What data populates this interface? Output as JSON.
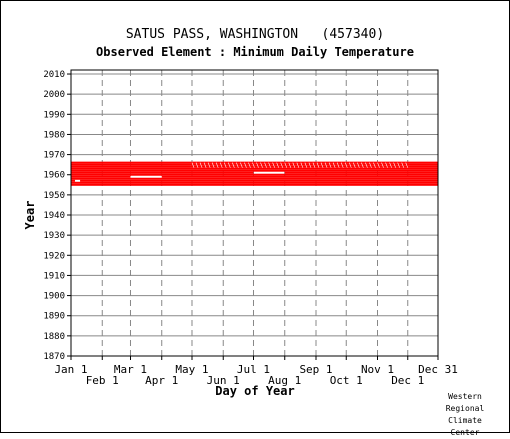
{
  "header": {
    "station": "SATUS PASS, WASHINGTON   (457340)",
    "element": "Observed Element : Minimum Daily Temperature"
  },
  "credit": [
    "Western",
    "Regional",
    "Climate",
    "Center"
  ],
  "colors": {
    "data": "#ff0000",
    "grid": "#888888",
    "axis": "#000000"
  },
  "chart_data": {
    "type": "scatter",
    "title": "SATUS PASS, WASHINGTON   (457340)",
    "subtitle": "Observed Element : Minimum Daily Temperature",
    "xlabel": "Day of Year",
    "ylabel": "Year",
    "xlim": [
      1,
      365
    ],
    "ylim": [
      1870,
      2012
    ],
    "x_ticks": [
      {
        "label": "Jan 1",
        "day": 1,
        "row": 1
      },
      {
        "label": "Feb 1",
        "day": 32,
        "row": 2
      },
      {
        "label": "Mar 1",
        "day": 60,
        "row": 1
      },
      {
        "label": "Apr 1",
        "day": 91,
        "row": 2
      },
      {
        "label": "May 1",
        "day": 121,
        "row": 1
      },
      {
        "label": "Jun 1",
        "day": 152,
        "row": 2
      },
      {
        "label": "Jul 1",
        "day": 182,
        "row": 1
      },
      {
        "label": "Aug 1",
        "day": 213,
        "row": 2
      },
      {
        "label": "Sep 1",
        "day": 244,
        "row": 1
      },
      {
        "label": "Oct 1",
        "day": 274,
        "row": 2
      },
      {
        "label": "Nov 1",
        "day": 305,
        "row": 1
      },
      {
        "label": "Dec 1",
        "day": 335,
        "row": 2
      },
      {
        "label": "Dec 31",
        "day": 365,
        "row": 1
      }
    ],
    "y_ticks": [
      1870,
      1880,
      1890,
      1900,
      1910,
      1920,
      1930,
      1940,
      1950,
      1960,
      1970,
      1980,
      1990,
      2000,
      2010
    ],
    "grid": true,
    "series": [
      {
        "color": "#ff0000",
        "year_range": [
          1955,
          1966
        ],
        "coverage": "observations on nearly every day of the year for each year 1955-1966; scattered gaps",
        "gaps": [
          {
            "year": 1959,
            "day_range": [
              60,
              91
            ]
          },
          {
            "year": 1961,
            "day_range": [
              182,
              213
            ]
          },
          {
            "year": 1957,
            "day_range": [
              5,
              10
            ]
          }
        ]
      }
    ]
  }
}
